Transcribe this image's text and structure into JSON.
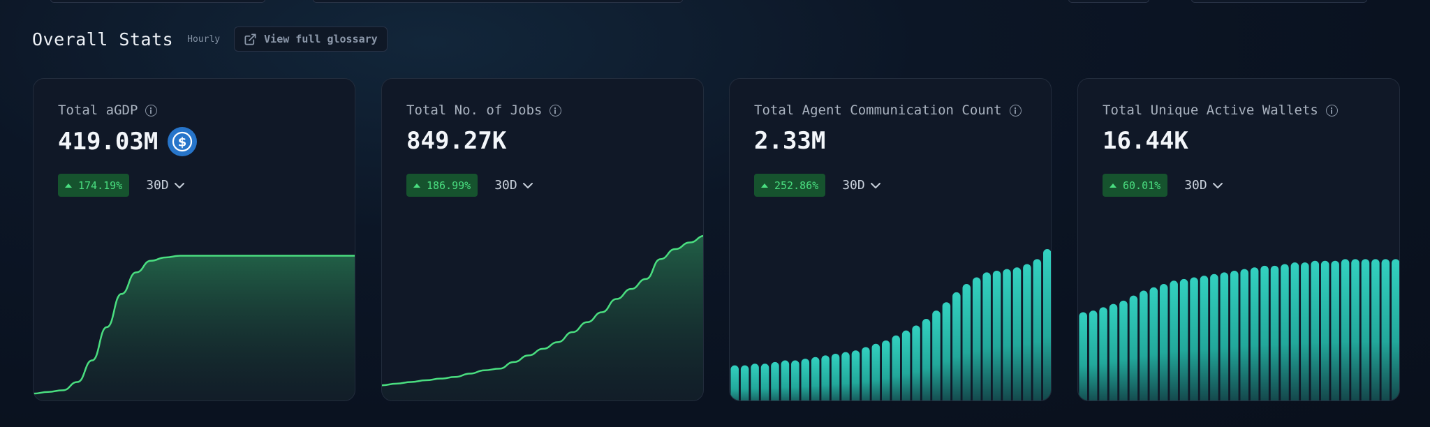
{
  "header": {
    "title": "Overall Stats",
    "frequency": "Hourly",
    "glossary_label": "View full glossary"
  },
  "cards": [
    {
      "label": "Total aGDP",
      "value": "419.03M",
      "change": "174.19%",
      "period": "30D",
      "icon": "usdc-coin-icon",
      "chart_type": "area"
    },
    {
      "label": "Total No. of Jobs",
      "value": "849.27K",
      "change": "186.99%",
      "period": "30D",
      "chart_type": "area"
    },
    {
      "label": "Total Agent Communication Count",
      "value": "2.33M",
      "change": "252.86%",
      "period": "30D",
      "chart_type": "bar"
    },
    {
      "label": "Total Unique Active Wallets",
      "value": "16.44K",
      "change": "60.01%",
      "period": "30D",
      "chart_type": "bar"
    }
  ],
  "colors": {
    "positive": "#4ade80",
    "badge_bg": "#16532e",
    "line": "#4ade80",
    "bar": "#2ec7b8",
    "usdc": "#2775ca"
  },
  "chart_data": [
    {
      "type": "area",
      "series": [
        {
          "values": [
            5,
            6,
            7,
            12,
            25,
            45,
            65,
            78,
            85,
            87,
            88,
            88,
            88,
            88,
            88,
            88,
            88,
            88,
            88,
            88,
            88,
            88,
            88
          ]
        }
      ]
    },
    {
      "type": "area",
      "series": [
        {
          "values": [
            10,
            11,
            12,
            13,
            14,
            15,
            17,
            19,
            20,
            24,
            28,
            32,
            36,
            42,
            48,
            54,
            62,
            68,
            74,
            86,
            92,
            96,
            100
          ]
        }
      ]
    },
    {
      "type": "bar",
      "series": [
        {
          "values": [
            22,
            22,
            23,
            23,
            24,
            25,
            25,
            26,
            27,
            28,
            29,
            30,
            31,
            33,
            35,
            37,
            40,
            43,
            46,
            50,
            55,
            60,
            66,
            71,
            75,
            78,
            79,
            80,
            81,
            83,
            86,
            92
          ]
        }
      ]
    },
    {
      "type": "bar",
      "series": [
        {
          "values": [
            54,
            55,
            57,
            59,
            61,
            64,
            67,
            69,
            71,
            73,
            74,
            75,
            76,
            77,
            78,
            79,
            80,
            81,
            82,
            82,
            83,
            84,
            84,
            85,
            85,
            85,
            86,
            86,
            86,
            86,
            86,
            86
          ]
        }
      ]
    }
  ]
}
